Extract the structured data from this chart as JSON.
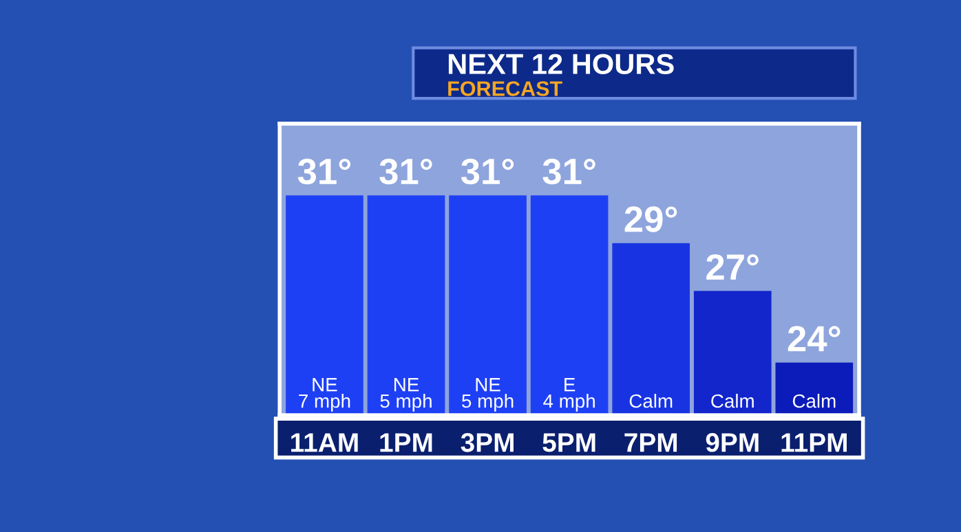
{
  "chart_data": {
    "type": "bar",
    "title": "NEXT 12 HOURS",
    "subtitle": "FORECAST",
    "categories": [
      "11AM",
      "1PM",
      "3PM",
      "5PM",
      "7PM",
      "9PM",
      "11PM"
    ],
    "values": [
      31,
      31,
      31,
      31,
      29,
      27,
      24
    ],
    "value_labels": [
      "31°",
      "31°",
      "31°",
      "31°",
      "29°",
      "27°",
      "24°"
    ],
    "colors": [
      "#1e40f5",
      "#1e40f5",
      "#1e40f5",
      "#1e40f5",
      "#1834e2",
      "#1226cc",
      "#0c1cba"
    ],
    "ylim": [
      21.8,
      34
    ],
    "tick_labels": "x",
    "grid": false,
    "legend": false,
    "annotations": [
      "NE\n7 mph",
      "NE\n5 mph",
      "NE\n5 mph",
      "E\n4 mph",
      "Calm",
      "Calm",
      "Calm"
    ]
  }
}
